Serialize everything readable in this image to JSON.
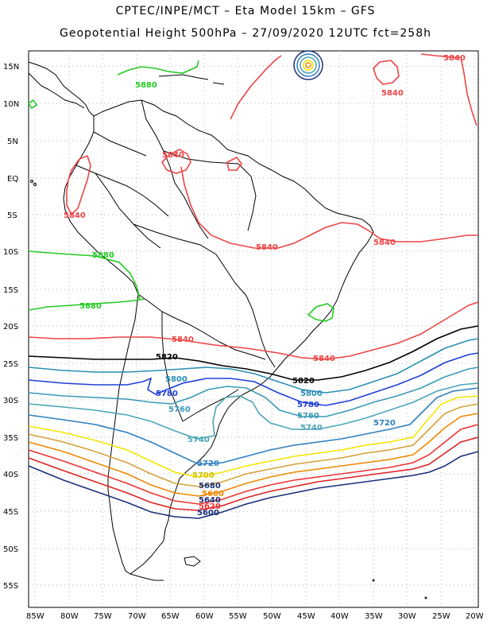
{
  "header": {
    "line1": "CPTEC/INPE/MCT –  Eta Model 15km – GFS",
    "line2": "Geopotential Height 500hPa – 27/09/2020 12UTC fct=258h"
  },
  "axes": {
    "lat_labels": [
      "15N",
      "10N",
      "5N",
      "EQ",
      "5S",
      "10S",
      "15S",
      "20S",
      "25S",
      "30S",
      "35S",
      "40S",
      "45S",
      "50S",
      "55S"
    ],
    "lon_labels": [
      "85W",
      "80W",
      "75W",
      "70W",
      "65W",
      "60W",
      "55W",
      "50W",
      "45W",
      "40W",
      "35W",
      "30W",
      "25W",
      "20W"
    ]
  },
  "colors": {
    "c5880": "#22cc22",
    "c5840": "#ee4444",
    "c5820": "#000000",
    "c5800": "#2a8fb4",
    "c5780": "#1f3fd8",
    "c5760": "#3a9ab8",
    "c5740": "#4aa6b8",
    "c5720": "#2f7fc0",
    "c5700": "#f2e600",
    "c5680": "#d4a23a",
    "c5660": "#ee8800",
    "c5640": "#ee3333",
    "c5620": "#dd2222",
    "c5600": "#1a2f7a",
    "grid": "#888888",
    "coast": "#000000"
  },
  "contour_labels": {
    "l5880a": "5880",
    "l5880b": "5880",
    "l5880c": "5880",
    "l5840a": "5840",
    "l5840b": "5840",
    "l5840c": "5840",
    "l5840d": "5840",
    "l5840e": "5840",
    "l5840f": "5840",
    "l5840g": "5840",
    "l5840h": "5840",
    "l5820a": "5820",
    "l5820b": "5820",
    "l5800a": "5800",
    "l5800b": "5800",
    "l5780a": "5780",
    "l5780b": "5780",
    "l5760a": "5760",
    "l5760b": "5760",
    "l5740a": "5740",
    "l5740b": "5740",
    "l5720a": "5720",
    "l5720b": "5720",
    "l5700": "5700",
    "l5680": "5680",
    "l5660": "5660",
    "l5640": "5640",
    "l5620": "5620",
    "l5600": "5600"
  }
}
